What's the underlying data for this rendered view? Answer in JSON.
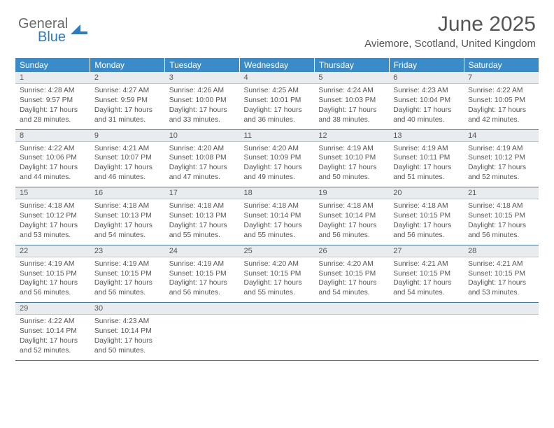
{
  "brand": {
    "part1": "General",
    "part2": "Blue"
  },
  "title": "June 2025",
  "location": "Aviemore, Scotland, United Kingdom",
  "colors": {
    "header_bg": "#3a8bc9",
    "daynum_bg": "#e9ecef",
    "border": "#4a78a5",
    "text": "#555555"
  },
  "weekdays": [
    "Sunday",
    "Monday",
    "Tuesday",
    "Wednesday",
    "Thursday",
    "Friday",
    "Saturday"
  ],
  "weeks": [
    [
      {
        "num": "1",
        "sunrise": "Sunrise: 4:28 AM",
        "sunset": "Sunset: 9:57 PM",
        "daylight": "Daylight: 17 hours and 28 minutes."
      },
      {
        "num": "2",
        "sunrise": "Sunrise: 4:27 AM",
        "sunset": "Sunset: 9:59 PM",
        "daylight": "Daylight: 17 hours and 31 minutes."
      },
      {
        "num": "3",
        "sunrise": "Sunrise: 4:26 AM",
        "sunset": "Sunset: 10:00 PM",
        "daylight": "Daylight: 17 hours and 33 minutes."
      },
      {
        "num": "4",
        "sunrise": "Sunrise: 4:25 AM",
        "sunset": "Sunset: 10:01 PM",
        "daylight": "Daylight: 17 hours and 36 minutes."
      },
      {
        "num": "5",
        "sunrise": "Sunrise: 4:24 AM",
        "sunset": "Sunset: 10:03 PM",
        "daylight": "Daylight: 17 hours and 38 minutes."
      },
      {
        "num": "6",
        "sunrise": "Sunrise: 4:23 AM",
        "sunset": "Sunset: 10:04 PM",
        "daylight": "Daylight: 17 hours and 40 minutes."
      },
      {
        "num": "7",
        "sunrise": "Sunrise: 4:22 AM",
        "sunset": "Sunset: 10:05 PM",
        "daylight": "Daylight: 17 hours and 42 minutes."
      }
    ],
    [
      {
        "num": "8",
        "sunrise": "Sunrise: 4:22 AM",
        "sunset": "Sunset: 10:06 PM",
        "daylight": "Daylight: 17 hours and 44 minutes."
      },
      {
        "num": "9",
        "sunrise": "Sunrise: 4:21 AM",
        "sunset": "Sunset: 10:07 PM",
        "daylight": "Daylight: 17 hours and 46 minutes."
      },
      {
        "num": "10",
        "sunrise": "Sunrise: 4:20 AM",
        "sunset": "Sunset: 10:08 PM",
        "daylight": "Daylight: 17 hours and 47 minutes."
      },
      {
        "num": "11",
        "sunrise": "Sunrise: 4:20 AM",
        "sunset": "Sunset: 10:09 PM",
        "daylight": "Daylight: 17 hours and 49 minutes."
      },
      {
        "num": "12",
        "sunrise": "Sunrise: 4:19 AM",
        "sunset": "Sunset: 10:10 PM",
        "daylight": "Daylight: 17 hours and 50 minutes."
      },
      {
        "num": "13",
        "sunrise": "Sunrise: 4:19 AM",
        "sunset": "Sunset: 10:11 PM",
        "daylight": "Daylight: 17 hours and 51 minutes."
      },
      {
        "num": "14",
        "sunrise": "Sunrise: 4:19 AM",
        "sunset": "Sunset: 10:12 PM",
        "daylight": "Daylight: 17 hours and 52 minutes."
      }
    ],
    [
      {
        "num": "15",
        "sunrise": "Sunrise: 4:18 AM",
        "sunset": "Sunset: 10:12 PM",
        "daylight": "Daylight: 17 hours and 53 minutes."
      },
      {
        "num": "16",
        "sunrise": "Sunrise: 4:18 AM",
        "sunset": "Sunset: 10:13 PM",
        "daylight": "Daylight: 17 hours and 54 minutes."
      },
      {
        "num": "17",
        "sunrise": "Sunrise: 4:18 AM",
        "sunset": "Sunset: 10:13 PM",
        "daylight": "Daylight: 17 hours and 55 minutes."
      },
      {
        "num": "18",
        "sunrise": "Sunrise: 4:18 AM",
        "sunset": "Sunset: 10:14 PM",
        "daylight": "Daylight: 17 hours and 55 minutes."
      },
      {
        "num": "19",
        "sunrise": "Sunrise: 4:18 AM",
        "sunset": "Sunset: 10:14 PM",
        "daylight": "Daylight: 17 hours and 56 minutes."
      },
      {
        "num": "20",
        "sunrise": "Sunrise: 4:18 AM",
        "sunset": "Sunset: 10:15 PM",
        "daylight": "Daylight: 17 hours and 56 minutes."
      },
      {
        "num": "21",
        "sunrise": "Sunrise: 4:18 AM",
        "sunset": "Sunset: 10:15 PM",
        "daylight": "Daylight: 17 hours and 56 minutes."
      }
    ],
    [
      {
        "num": "22",
        "sunrise": "Sunrise: 4:19 AM",
        "sunset": "Sunset: 10:15 PM",
        "daylight": "Daylight: 17 hours and 56 minutes."
      },
      {
        "num": "23",
        "sunrise": "Sunrise: 4:19 AM",
        "sunset": "Sunset: 10:15 PM",
        "daylight": "Daylight: 17 hours and 56 minutes."
      },
      {
        "num": "24",
        "sunrise": "Sunrise: 4:19 AM",
        "sunset": "Sunset: 10:15 PM",
        "daylight": "Daylight: 17 hours and 56 minutes."
      },
      {
        "num": "25",
        "sunrise": "Sunrise: 4:20 AM",
        "sunset": "Sunset: 10:15 PM",
        "daylight": "Daylight: 17 hours and 55 minutes."
      },
      {
        "num": "26",
        "sunrise": "Sunrise: 4:20 AM",
        "sunset": "Sunset: 10:15 PM",
        "daylight": "Daylight: 17 hours and 54 minutes."
      },
      {
        "num": "27",
        "sunrise": "Sunrise: 4:21 AM",
        "sunset": "Sunset: 10:15 PM",
        "daylight": "Daylight: 17 hours and 54 minutes."
      },
      {
        "num": "28",
        "sunrise": "Sunrise: 4:21 AM",
        "sunset": "Sunset: 10:15 PM",
        "daylight": "Daylight: 17 hours and 53 minutes."
      }
    ],
    [
      {
        "num": "29",
        "sunrise": "Sunrise: 4:22 AM",
        "sunset": "Sunset: 10:14 PM",
        "daylight": "Daylight: 17 hours and 52 minutes."
      },
      {
        "num": "30",
        "sunrise": "Sunrise: 4:23 AM",
        "sunset": "Sunset: 10:14 PM",
        "daylight": "Daylight: 17 hours and 50 minutes."
      },
      null,
      null,
      null,
      null,
      null
    ]
  ]
}
